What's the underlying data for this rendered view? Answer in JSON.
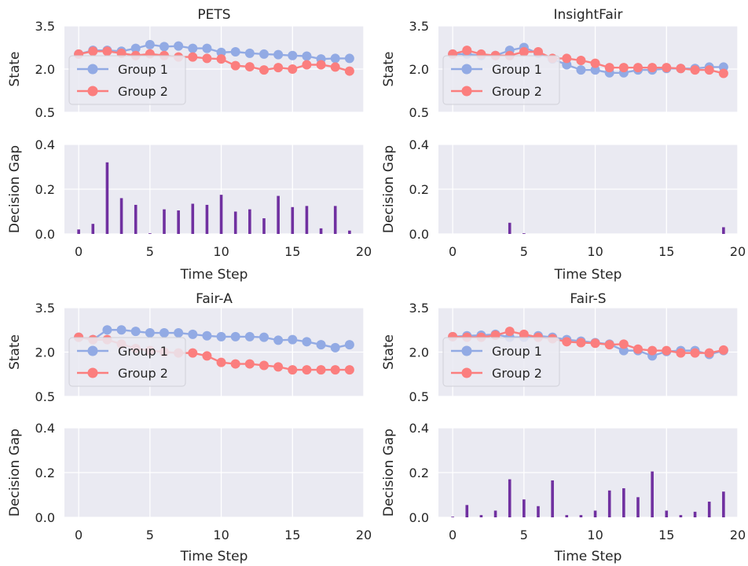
{
  "colors": {
    "background": "#eaeaf2",
    "grid": "#ffffff",
    "group1": "#92aae4",
    "group2": "#fb7e7e",
    "gap_bar": "#7030a0",
    "legend_bg": "#eaeaf2",
    "legend_border": "#d0d0d8"
  },
  "chart_data": [
    {
      "name": "PETS",
      "title": "PETS",
      "state": {
        "type": "line",
        "ylabel": "State",
        "ylim": [
          0.5,
          3.5
        ],
        "yticks": [
          "0.5",
          "2.0",
          "3.5"
        ],
        "xlim": [
          -1,
          20
        ],
        "x": [
          0,
          1,
          2,
          3,
          4,
          5,
          6,
          7,
          8,
          9,
          10,
          11,
          12,
          13,
          14,
          15,
          16,
          17,
          18,
          19
        ],
        "series": [
          {
            "name": "Group 1",
            "color_key": "group1",
            "values": [
              2.52,
              2.65,
              2.65,
              2.62,
              2.72,
              2.85,
              2.78,
              2.8,
              2.72,
              2.72,
              2.58,
              2.6,
              2.55,
              2.52,
              2.5,
              2.47,
              2.45,
              2.35,
              2.37,
              2.37
            ]
          },
          {
            "name": "Group 2",
            "color_key": "group2",
            "values": [
              2.52,
              2.62,
              2.62,
              2.55,
              2.47,
              2.53,
              2.47,
              2.42,
              2.42,
              2.37,
              2.35,
              2.12,
              2.08,
              1.97,
              2.05,
              2.0,
              2.15,
              2.15,
              2.07,
              1.93
            ]
          }
        ],
        "legend": [
          "Group 1",
          "Group 2"
        ],
        "legend_position": "lower-left"
      },
      "gap": {
        "type": "bar",
        "ylabel": "Decision Gap",
        "xlabel": "Time Step",
        "ylim": [
          0,
          0.4
        ],
        "yticks": [
          "0.0",
          "0.2",
          "0.4"
        ],
        "xticks": [
          "0",
          "5",
          "10",
          "15",
          "20"
        ],
        "xlim": [
          -1,
          20
        ],
        "x": [
          0,
          1,
          2,
          3,
          4,
          5,
          6,
          7,
          8,
          9,
          10,
          11,
          12,
          13,
          14,
          15,
          16,
          17,
          18,
          19
        ],
        "values": [
          0.02,
          0.045,
          0.32,
          0.16,
          0.13,
          0.003,
          0.11,
          0.105,
          0.135,
          0.13,
          0.175,
          0.1,
          0.11,
          0.07,
          0.17,
          0.12,
          0.125,
          0.025,
          0.125,
          0.015
        ]
      }
    },
    {
      "name": "InsightFair",
      "title": "InsightFair",
      "state": {
        "type": "line",
        "ylabel": "State",
        "ylim": [
          0.5,
          3.5
        ],
        "yticks": [
          "0.5",
          "2.0",
          "3.5"
        ],
        "xlim": [
          -1,
          20
        ],
        "x": [
          0,
          1,
          2,
          3,
          4,
          5,
          6,
          7,
          8,
          9,
          10,
          11,
          12,
          13,
          14,
          15,
          16,
          17,
          18,
          19
        ],
        "series": [
          {
            "name": "Group 1",
            "color_key": "group1",
            "values": [
              2.52,
              2.52,
              2.47,
              2.47,
              2.65,
              2.75,
              2.55,
              2.35,
              2.15,
              1.97,
              1.97,
              1.87,
              1.87,
              1.97,
              1.97,
              2.02,
              2.02,
              2.02,
              2.07,
              2.07
            ]
          },
          {
            "name": "Group 2",
            "color_key": "group2",
            "values": [
              2.52,
              2.65,
              2.52,
              2.47,
              2.47,
              2.6,
              2.6,
              2.37,
              2.37,
              2.3,
              2.2,
              2.05,
              2.05,
              2.05,
              2.05,
              2.05,
              2.02,
              1.97,
              1.97,
              1.85
            ]
          }
        ],
        "legend": [
          "Group 1",
          "Group 2"
        ],
        "legend_position": "lower-left"
      },
      "gap": {
        "type": "bar",
        "ylabel": "Decision Gap",
        "xlabel": "Time Step",
        "ylim": [
          0,
          0.4
        ],
        "yticks": [
          "0.0",
          "0.2",
          "0.4"
        ],
        "xticks": [
          "0",
          "5",
          "10",
          "15",
          "20"
        ],
        "xlim": [
          -1,
          20
        ],
        "x": [
          0,
          1,
          2,
          3,
          4,
          5,
          6,
          7,
          8,
          9,
          10,
          11,
          12,
          13,
          14,
          15,
          16,
          17,
          18,
          19
        ],
        "values": [
          0,
          0,
          0,
          0,
          0.05,
          0.003,
          0,
          0,
          0,
          0,
          0,
          0,
          0,
          0,
          0,
          0,
          0,
          0,
          0,
          0.03
        ]
      }
    },
    {
      "name": "Fair-A",
      "title": "Fair-A",
      "state": {
        "type": "line",
        "ylabel": "State",
        "ylim": [
          0.5,
          3.5
        ],
        "yticks": [
          "0.5",
          "2.0",
          "3.5"
        ],
        "xlim": [
          -1,
          20
        ],
        "x": [
          0,
          1,
          2,
          3,
          4,
          5,
          6,
          7,
          8,
          9,
          10,
          11,
          12,
          13,
          14,
          15,
          16,
          17,
          18,
          19
        ],
        "series": [
          {
            "name": "Group 1",
            "color_key": "group1",
            "values": [
              2.5,
              2.42,
              2.75,
              2.75,
              2.7,
              2.65,
              2.65,
              2.65,
              2.6,
              2.55,
              2.52,
              2.52,
              2.52,
              2.5,
              2.4,
              2.42,
              2.35,
              2.25,
              2.15,
              2.25
            ]
          },
          {
            "name": "Group 2",
            "color_key": "group2",
            "values": [
              2.5,
              2.42,
              2.42,
              2.27,
              2.12,
              2.05,
              2.0,
              1.97,
              1.97,
              1.87,
              1.65,
              1.6,
              1.6,
              1.55,
              1.5,
              1.4,
              1.4,
              1.4,
              1.4,
              1.4
            ]
          }
        ],
        "legend": [
          "Group 1",
          "Group 2"
        ],
        "legend_position": "lower-left"
      },
      "gap": {
        "type": "bar",
        "ylabel": "Decision Gap",
        "xlabel": "Time Step",
        "ylim": [
          0,
          0.4
        ],
        "yticks": [
          "0.0",
          "0.2",
          "0.4"
        ],
        "xticks": [
          "0",
          "5",
          "10",
          "15",
          "20"
        ],
        "xlim": [
          -1,
          20
        ],
        "x": [
          0,
          1,
          2,
          3,
          4,
          5,
          6,
          7,
          8,
          9,
          10,
          11,
          12,
          13,
          14,
          15,
          16,
          17,
          18,
          19
        ],
        "values": [
          0,
          0,
          0,
          0,
          0,
          0,
          0,
          0,
          0,
          0,
          0,
          0,
          0,
          0,
          0,
          0,
          0,
          0,
          0,
          0
        ]
      }
    },
    {
      "name": "Fair-S",
      "title": "Fair-S",
      "state": {
        "type": "line",
        "ylabel": "State",
        "ylim": [
          0.5,
          3.5
        ],
        "yticks": [
          "0.5",
          "2.0",
          "3.5"
        ],
        "xlim": [
          -1,
          20
        ],
        "x": [
          0,
          1,
          2,
          3,
          4,
          5,
          6,
          7,
          8,
          9,
          10,
          11,
          12,
          13,
          14,
          15,
          16,
          17,
          18,
          19
        ],
        "series": [
          {
            "name": "Group 1",
            "color_key": "group1",
            "values": [
              2.52,
              2.55,
              2.57,
              2.6,
              2.5,
              2.5,
              2.55,
              2.5,
              2.42,
              2.37,
              2.32,
              2.27,
              2.05,
              2.05,
              1.87,
              2.02,
              2.05,
              2.05,
              1.92,
              2.05
            ]
          },
          {
            "name": "Group 2",
            "color_key": "group2",
            "values": [
              2.52,
              2.5,
              2.5,
              2.57,
              2.7,
              2.6,
              2.5,
              2.45,
              2.35,
              2.32,
              2.3,
              2.25,
              2.27,
              2.1,
              2.05,
              2.05,
              1.97,
              1.97,
              1.97,
              2.07
            ]
          }
        ],
        "legend": [
          "Group 1",
          "Group 2"
        ],
        "legend_position": "lower-left"
      },
      "gap": {
        "type": "bar",
        "ylabel": "Decision Gap",
        "xlabel": "Time Step",
        "ylim": [
          0,
          0.4
        ],
        "yticks": [
          "0.0",
          "0.2",
          "0.4"
        ],
        "xticks": [
          "0",
          "5",
          "10",
          "15",
          "20"
        ],
        "xlim": [
          -1,
          20
        ],
        "x": [
          0,
          1,
          2,
          3,
          4,
          5,
          6,
          7,
          8,
          9,
          10,
          11,
          12,
          13,
          14,
          15,
          16,
          17,
          18,
          19
        ],
        "values": [
          0.003,
          0.055,
          0.01,
          0.03,
          0.17,
          0.08,
          0.05,
          0.165,
          0.01,
          0.01,
          0.03,
          0.12,
          0.13,
          0.09,
          0.205,
          0.03,
          0.01,
          0.025,
          0.07,
          0.115
        ]
      }
    }
  ]
}
